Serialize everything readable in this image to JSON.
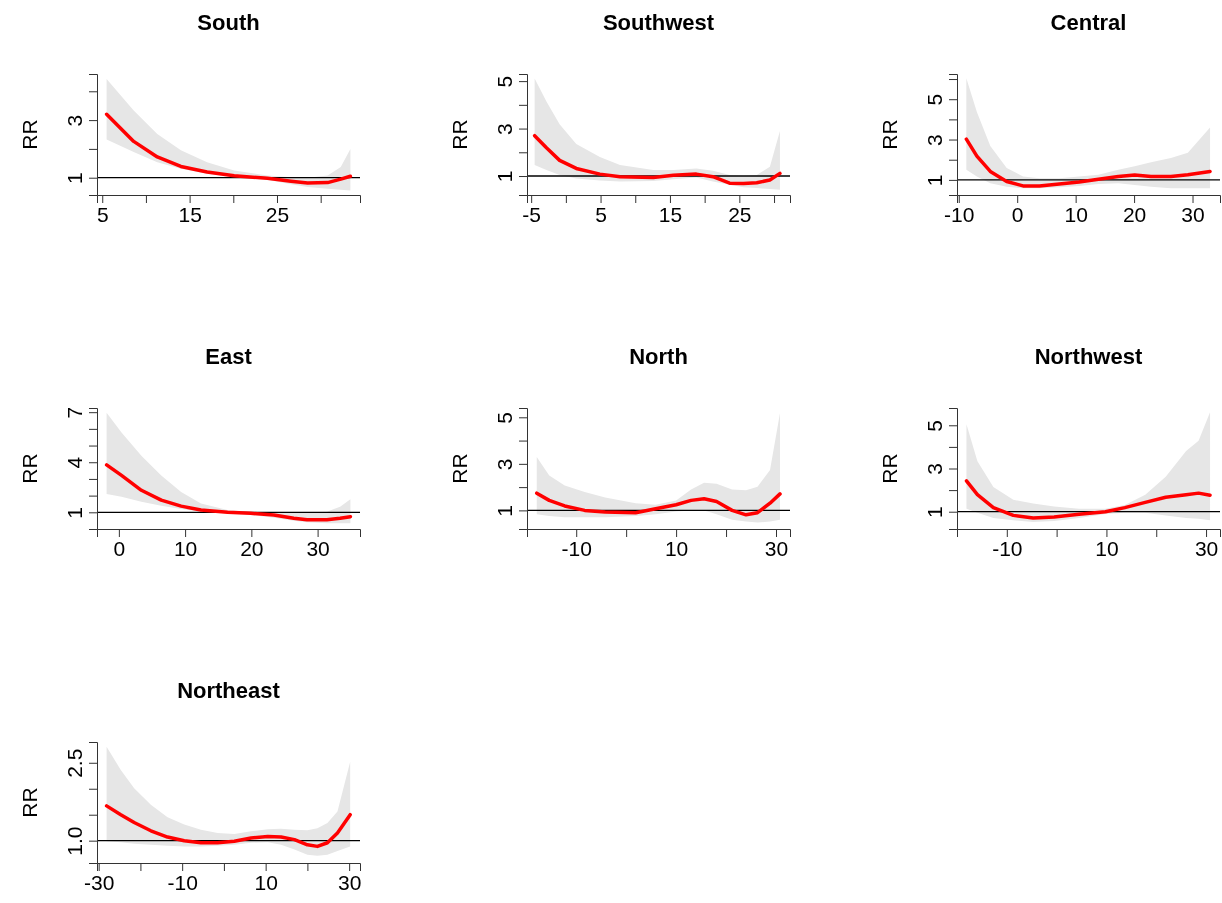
{
  "chart_data": [
    {
      "type": "line",
      "title": "South",
      "ylabel": "RR",
      "xlim": [
        4.4,
        34.5
      ],
      "ylim": [
        0.4,
        4.6
      ],
      "xticks": [
        5,
        {
          "value": 10,
          "label": null
        },
        15,
        {
          "value": 20,
          "label": null
        },
        25,
        {
          "value": 30,
          "label": null
        }
      ],
      "yticks": [
        1,
        {
          "value": 2,
          "label": null
        },
        3,
        {
          "value": 4,
          "label": null
        }
      ],
      "ref_lines": [
        {
          "axis": "y",
          "value": 1,
          "color": "#000000"
        }
      ],
      "series": [
        {
          "color": "#ff0000",
          "x": [
            5.5,
            8.6,
            11.3,
            14,
            17,
            20.1,
            23.9,
            26.6,
            28.5,
            30.8,
            32.3,
            33.4
          ],
          "values": [
            3.2,
            2.26,
            1.72,
            1.39,
            1.2,
            1.07,
            0.98,
            0.88,
            0.82,
            0.83,
            0.95,
            1.05
          ],
          "upper": [
            4.43,
            3.33,
            2.52,
            1.95,
            1.54,
            1.25,
            1.08,
            1.02,
            1.0,
            1.08,
            1.37,
            2.0
          ],
          "lower": [
            2.33,
            1.89,
            1.54,
            1.31,
            1.14,
            1.02,
            0.93,
            0.77,
            0.68,
            0.62,
            0.58,
            0.56
          ]
        }
      ]
    },
    {
      "type": "line",
      "title": "Southwest",
      "ylabel": "RR",
      "xlim": [
        -5.6,
        32.3
      ],
      "ylim": [
        0.2,
        5.3
      ],
      "xticks": [
        -5,
        {
          "value": 0,
          "label": null
        },
        5,
        {
          "value": 10,
          "label": null
        },
        15,
        {
          "value": 20,
          "label": null
        },
        25,
        {
          "value": 30,
          "label": null
        }
      ],
      "yticks": [
        1,
        {
          "value": 2,
          "label": null
        },
        3,
        {
          "value": 4,
          "label": null
        },
        5
      ],
      "ref_lines": [
        {
          "axis": "y",
          "value": 1,
          "color": "#000000"
        }
      ],
      "series": [
        {
          "color": "#ff0000",
          "x": [
            -4.5,
            -2.8,
            -0.9,
            1.5,
            4.9,
            7.8,
            12.6,
            15.5,
            18.8,
            21.2,
            23.6,
            25.6,
            27.5,
            29.4,
            30.85
          ],
          "values": [
            2.7,
            2.19,
            1.66,
            1.32,
            1.08,
            0.97,
            0.94,
            1.03,
            1.08,
            0.97,
            0.7,
            0.68,
            0.72,
            0.83,
            1.11
          ],
          "upper": [
            5.11,
            4.14,
            3.18,
            2.35,
            1.8,
            1.46,
            1.25,
            1.25,
            1.32,
            1.22,
            1.04,
            1.0,
            1.04,
            1.39,
            2.9
          ],
          "lower": [
            1.46,
            1.25,
            1.04,
            0.9,
            0.81,
            0.77,
            0.79,
            0.86,
            0.94,
            0.77,
            0.63,
            0.53,
            0.49,
            0.45,
            0.42
          ]
        }
      ]
    },
    {
      "type": "line",
      "title": "Central",
      "ylabel": "RR",
      "xlim": [
        -10.3,
        34.7
      ],
      "ylim": [
        0.25,
        6.25
      ],
      "xticks": [
        -10,
        0,
        10,
        20,
        30
      ],
      "yticks": [
        1,
        {
          "value": 2,
          "label": null
        },
        3,
        {
          "value": 4,
          "label": null
        },
        5,
        {
          "value": 6,
          "label": null
        }
      ],
      "ref_lines": [
        {
          "axis": "y",
          "value": 1,
          "color": "#000000"
        }
      ],
      "series": [
        {
          "color": "#ff0000",
          "x": [
            -8.7,
            -6.9,
            -4.6,
            -1.8,
            1.0,
            3.8,
            7.2,
            10.6,
            13.9,
            17.3,
            20.1,
            22.9,
            26.3,
            29.2,
            33.0
          ],
          "values": [
            3.02,
            2.18,
            1.42,
            0.92,
            0.7,
            0.7,
            0.8,
            0.9,
            1.03,
            1.17,
            1.24,
            1.17,
            1.17,
            1.25,
            1.42
          ],
          "upper": [
            6.04,
            4.36,
            2.68,
            1.59,
            1.17,
            1.08,
            1.08,
            1.17,
            1.25,
            1.5,
            1.67,
            1.87,
            2.09,
            2.34,
            3.6
          ],
          "lower": [
            1.5,
            1.17,
            0.83,
            0.66,
            0.58,
            0.58,
            0.63,
            0.7,
            0.8,
            0.83,
            0.75,
            0.66,
            0.58,
            0.58,
            0.58
          ]
        }
      ]
    },
    {
      "type": "line",
      "title": "East",
      "ylabel": "RR",
      "xlim": [
        -3.3,
        36.4
      ],
      "ylim": [
        0,
        7.25
      ],
      "xticks": [
        0,
        10,
        20,
        30
      ],
      "yticks": [
        1,
        {
          "value": 2,
          "label": null
        },
        {
          "value": 3,
          "label": null
        },
        4,
        {
          "value": 5,
          "label": null
        },
        {
          "value": 6,
          "label": null
        },
        7
      ],
      "ref_lines": [
        {
          "axis": "y",
          "value": 1,
          "color": "#000000"
        }
      ],
      "series": [
        {
          "color": "#ff0000",
          "x": [
            -1.85,
            0.4,
            3.4,
            6.4,
            9.4,
            12.4,
            16.4,
            19.9,
            23.4,
            26.4,
            28.4,
            31.4,
            33.4,
            34.95
          ],
          "values": [
            3.84,
            3.21,
            2.32,
            1.73,
            1.37,
            1.14,
            1.0,
            0.94,
            0.84,
            0.64,
            0.55,
            0.55,
            0.64,
            0.74
          ],
          "upper": [
            6.96,
            5.78,
            4.39,
            3.21,
            2.22,
            1.53,
            1.14,
            1.0,
            1.0,
            1.0,
            1.0,
            1.04,
            1.34,
            1.79
          ],
          "lower": [
            2.09,
            1.93,
            1.63,
            1.39,
            1.2,
            1.04,
            0.94,
            0.84,
            0.68,
            0.49,
            0.41,
            0.35,
            0.35,
            0.35
          ]
        }
      ]
    },
    {
      "type": "line",
      "title": "North",
      "ylabel": "RR",
      "xlim": [
        -19.85,
        32.8
      ],
      "ylim": [
        0.2,
        5.4
      ],
      "xticks": [
        -10,
        {
          "value": 0,
          "label": null
        },
        10,
        {
          "value": 20,
          "label": null
        },
        30
      ],
      "yticks": [
        1,
        {
          "value": 2,
          "label": null
        },
        3,
        {
          "value": 4,
          "label": null
        },
        5
      ],
      "ref_lines": [
        {
          "axis": "y",
          "value": 1,
          "color": "#000000"
        }
      ],
      "series": [
        {
          "color": "#ff0000",
          "x": [
            -17.9,
            -15.4,
            -12.3,
            -8.3,
            -4.2,
            1.9,
            5.9,
            10,
            13,
            15.6,
            18.1,
            21.2,
            24.0,
            26.3,
            28.8,
            30.8
          ],
          "values": [
            1.74,
            1.43,
            1.19,
            1.0,
            0.93,
            0.9,
            1.07,
            1.24,
            1.43,
            1.5,
            1.38,
            1.0,
            0.81,
            0.9,
            1.31,
            1.71
          ],
          "upper": [
            3.29,
            2.5,
            2.07,
            1.79,
            1.55,
            1.31,
            1.24,
            1.43,
            1.9,
            2.19,
            2.14,
            1.9,
            1.86,
            2.02,
            2.74,
            5.19
          ],
          "lower": [
            0.83,
            0.76,
            0.71,
            0.71,
            0.71,
            0.76,
            0.83,
            0.95,
            1.0,
            1.0,
            0.83,
            0.6,
            0.52,
            0.48,
            0.52,
            0.6
          ]
        }
      ]
    },
    {
      "type": "line",
      "title": "Northwest",
      "ylabel": "RR",
      "xlim": [
        -20,
        32.8
      ],
      "ylim": [
        0.2,
        5.8
      ],
      "xticks": [
        -10,
        {
          "value": 0,
          "label": null
        },
        10,
        {
          "value": 20,
          "label": null
        },
        30
      ],
      "yticks": [
        1,
        {
          "value": 2,
          "label": null
        },
        3,
        {
          "value": 4,
          "label": null
        },
        5
      ],
      "ref_lines": [
        {
          "axis": "y",
          "value": 1,
          "color": "#000000"
        }
      ],
      "series": [
        {
          "color": "#ff0000",
          "x": [
            -18.1,
            -15.9,
            -12.7,
            -8.7,
            -4.7,
            -0.5,
            4.5,
            9.8,
            13.7,
            17.8,
            21.9,
            26,
            28.5,
            30.8
          ],
          "values": [
            2.43,
            1.79,
            1.19,
            0.83,
            0.71,
            0.76,
            0.88,
            1.0,
            1.19,
            1.43,
            1.67,
            1.79,
            1.86,
            1.76
          ],
          "upper": [
            5.05,
            3.33,
            2.14,
            1.55,
            1.38,
            1.24,
            1.14,
            1.14,
            1.31,
            1.79,
            2.62,
            3.81,
            4.29,
            5.6
          ],
          "lower": [
            1.14,
            0.95,
            0.71,
            0.6,
            0.52,
            0.57,
            0.71,
            0.9,
            0.95,
            0.95,
            0.83,
            0.71,
            0.67,
            0.6
          ]
        }
      ]
    },
    {
      "type": "line",
      "title": "Northeast",
      "ylabel": "RR",
      "xlim": [
        -30.4,
        32.6
      ],
      "ylim": [
        0.57,
        2.9
      ],
      "xticks": [
        -30,
        {
          "value": -20,
          "label": null
        },
        -10,
        {
          "value": 0,
          "label": null
        },
        10,
        {
          "value": 20,
          "label": null
        },
        30
      ],
      "yticks": [
        {
          "value": 1,
          "label": "1.0"
        },
        {
          "value": 1.5,
          "label": null
        },
        {
          "value": 2,
          "label": null
        },
        2.5
      ],
      "ref_lines": [
        {
          "axis": "y",
          "value": 1,
          "color": "#000000"
        }
      ],
      "series": [
        {
          "color": "#ff0000",
          "x": [
            -28.1,
            -24.7,
            -21.5,
            -17.5,
            -13.5,
            -9.5,
            -5.5,
            -1.5,
            2.5,
            6.5,
            10.5,
            13.7,
            16.9,
            20.0,
            22.4,
            24.8,
            27.2,
            30.25
          ],
          "values": [
            1.67,
            1.5,
            1.35,
            1.19,
            1.07,
            1.0,
            0.96,
            0.96,
            0.99,
            1.05,
            1.08,
            1.07,
            1.02,
            0.92,
            0.89,
            0.96,
            1.15,
            1.5
          ],
          "upper": [
            2.81,
            2.36,
            2.01,
            1.69,
            1.45,
            1.31,
            1.21,
            1.15,
            1.13,
            1.18,
            1.22,
            1.23,
            1.21,
            1.2,
            1.24,
            1.34,
            1.56,
            2.52
          ],
          "lower": [
            0.99,
            0.97,
            0.94,
            0.92,
            0.9,
            0.89,
            0.89,
            0.9,
            0.92,
            0.96,
            0.97,
            0.92,
            0.83,
            0.73,
            0.71,
            0.73,
            0.8,
            0.89
          ]
        }
      ]
    }
  ]
}
